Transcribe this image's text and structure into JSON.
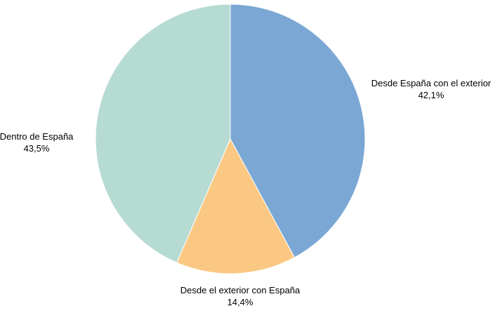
{
  "chart_data": {
    "type": "pie",
    "title": "",
    "slices": [
      {
        "label": "Desde España con el exterior",
        "value": 42.1,
        "value_label": "42,1%",
        "color": "#7ba7d4"
      },
      {
        "label": "Desde el exterior con España",
        "value": 14.4,
        "value_label": "14,4%",
        "color": "#fac882"
      },
      {
        "label": "Dentro de España",
        "value": 43.5,
        "value_label": "43,5%",
        "color": "#b6dbd3"
      }
    ],
    "start_angle": "12 o'clock",
    "direction": "clockwise",
    "legend": "none"
  }
}
